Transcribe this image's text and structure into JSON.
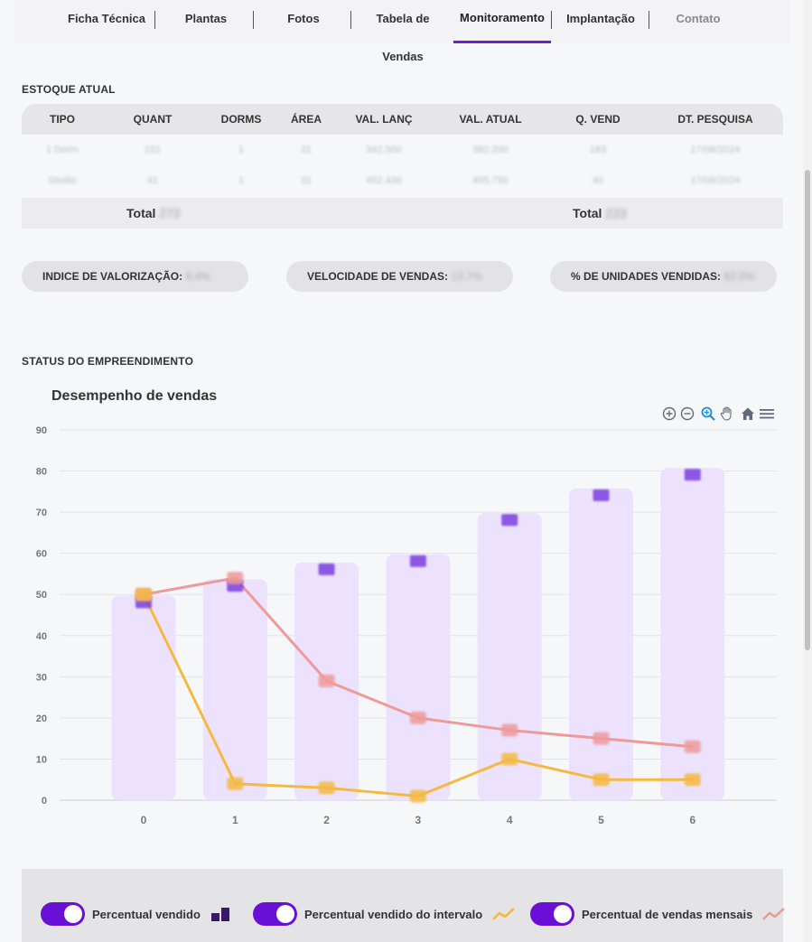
{
  "tabs": [
    {
      "label": "Ficha Técnica"
    },
    {
      "label": "Plantas"
    },
    {
      "label": "Fotos"
    },
    {
      "label": "Tabela de Vendas"
    },
    {
      "label": "Monitoramento"
    },
    {
      "label": "Implantação"
    },
    {
      "label": "Contato"
    }
  ],
  "stock": {
    "title": "ESTOQUE ATUAL",
    "headers": [
      "TIPO",
      "QUANT",
      "DORMS",
      "ÁREA",
      "VAL. LANÇ",
      "VAL. ATUAL",
      "Q. VEND",
      "DT. PESQUISA"
    ],
    "rows": [
      [
        "1 Dorm",
        "231",
        "1",
        "31",
        "342.500",
        "382.200",
        "183",
        "17/06/2024"
      ],
      [
        "Studio",
        "41",
        "1",
        "31",
        "452.430",
        "455.750",
        "40",
        "17/06/2024"
      ]
    ],
    "total_label_1": "Total",
    "total_value_1": "272",
    "total_label_2": "Total",
    "total_value_2": "223"
  },
  "indicators": {
    "valorizacao_label": "INDICE DE VALORIZAÇÃO:",
    "valorizacao_value": "6.4%",
    "velocidade_label": "VELOCIDADE DE VENDAS:",
    "velocidade_value": "13.7%",
    "vendidas_label": "% DE UNIDADES VENDIDAS:",
    "vendidas_value": "82.0%"
  },
  "status": {
    "title": "STATUS DO EMPREENDIMENTO",
    "chart_title": "Desempenho de vendas"
  },
  "toolbar_icons": [
    "zoom-in-icon",
    "zoom-out-icon",
    "selection-zoom-icon",
    "pan-hand-icon",
    "home-icon",
    "menu-icon"
  ],
  "legend": [
    {
      "label": "Percentual vendido",
      "icon": "bar-icon"
    },
    {
      "label": "Percentual vendido do intervalo",
      "icon": "line-icon"
    },
    {
      "label": "Percentual de vendas mensais",
      "icon": "line-icon"
    }
  ],
  "colors": {
    "accent": "#6a10d6",
    "bar_fill": "#ece2fd",
    "bar_marker": "#7b3fe0",
    "line_orange": "#f5b942",
    "line_pink": "#ee9a9a"
  },
  "chart_data": {
    "type": "bar",
    "categories": [
      "0",
      "1",
      "2",
      "3",
      "4",
      "5",
      "6"
    ],
    "ylim": [
      0,
      90
    ],
    "yticks": [
      0,
      10,
      20,
      30,
      40,
      50,
      60,
      70,
      80,
      90
    ],
    "grid": true,
    "series": [
      {
        "name": "Percentual vendido",
        "type": "bar",
        "values": [
          48,
          52,
          56,
          58,
          68,
          74,
          79
        ]
      },
      {
        "name": "Percentual vendido do intervalo",
        "type": "line",
        "values": [
          50,
          4,
          3,
          1,
          10,
          5,
          5
        ]
      },
      {
        "name": "Percentual de vendas mensais",
        "type": "line",
        "values": [
          50,
          54,
          29,
          20,
          17,
          15,
          13
        ]
      }
    ]
  }
}
